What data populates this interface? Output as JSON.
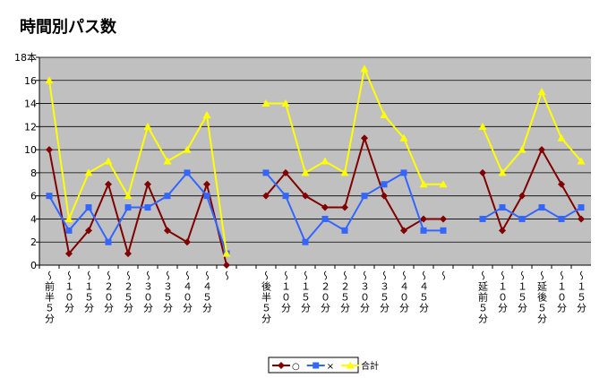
{
  "chart_data": {
    "type": "line",
    "title": "時間別パス数",
    "categories": [
      "〜前半５分",
      "〜１０分",
      "〜１５分",
      "〜２０分",
      "〜２５分",
      "〜３０分",
      "〜３５分",
      "〜４０分",
      "〜４５分",
      "〜",
      null,
      "〜後半５分",
      "〜１０分",
      "〜１５分",
      "〜２０分",
      "〜２５分",
      "〜３０分",
      "〜３５分",
      "〜４０分",
      "〜４５分",
      "〜",
      null,
      "〜延前５分",
      "〜１０分",
      "〜１５分",
      "〜延後５分",
      "〜１０分",
      "〜１５分"
    ],
    "series": [
      {
        "name": "○",
        "color": "#800000",
        "marker": "diamond",
        "values": [
          10,
          1,
          3,
          7,
          1,
          7,
          3,
          2,
          7,
          0,
          null,
          6,
          8,
          6,
          5,
          5,
          11,
          6,
          3,
          4,
          4,
          null,
          8,
          3,
          6,
          10,
          7,
          4
        ]
      },
      {
        "name": "×",
        "color": "#3366ff",
        "marker": "square",
        "values": [
          6,
          3,
          5,
          2,
          5,
          5,
          6,
          8,
          6,
          1,
          null,
          8,
          6,
          2,
          4,
          3,
          6,
          7,
          8,
          3,
          3,
          null,
          4,
          5,
          4,
          5,
          4,
          5
        ]
      },
      {
        "name": "合計",
        "color": "#ffff00",
        "marker": "triangle",
        "values": [
          16,
          4,
          8,
          9,
          6,
          12,
          9,
          10,
          13,
          1,
          null,
          14,
          14,
          8,
          9,
          8,
          17,
          13,
          11,
          7,
          7,
          null,
          12,
          8,
          10,
          15,
          11,
          9
        ]
      }
    ],
    "ylim": [
      0,
      18
    ],
    "yticks": [
      0,
      2,
      4,
      6,
      8,
      10,
      12,
      14,
      16,
      {
        "value": 18,
        "label": "18本"
      }
    ],
    "grid": true
  }
}
